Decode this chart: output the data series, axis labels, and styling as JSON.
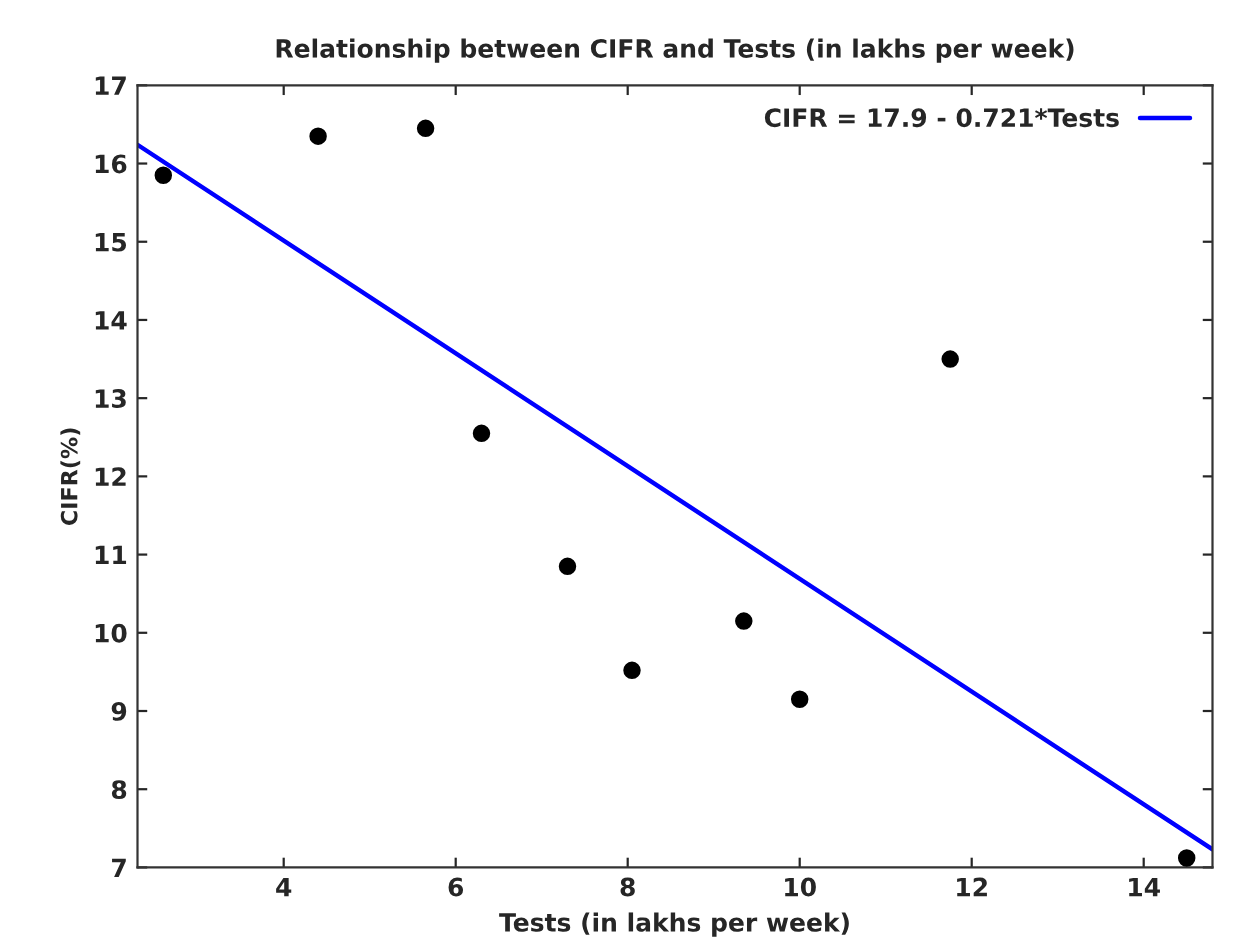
{
  "chart_data": {
    "type": "scatter",
    "title": "Relationship between CIFR and Tests (in lakhs per week)",
    "xlabel": "Tests (in lakhs per week)",
    "ylabel": "CIFR(%)",
    "series": [
      {
        "color": "#000000",
        "marker": "circle",
        "x": [
          2.6,
          4.4,
          5.65,
          6.3,
          7.3,
          8.05,
          9.35,
          10.0,
          11.75,
          14.5
        ],
        "values": [
          15.85,
          16.35,
          16.45,
          12.55,
          10.85,
          9.52,
          10.15,
          9.15,
          13.5,
          7.12
        ]
      },
      {
        "type": "line",
        "name": "CIFR = 17.9 - 0.721*Tests",
        "color": "#0000ff",
        "x": [
          2.3,
          14.8
        ],
        "values": [
          16.24,
          7.23
        ]
      }
    ],
    "xlim": [
      2.3,
      14.8
    ],
    "xticks": [
      4,
      6,
      8,
      10,
      12,
      14
    ],
    "ylim": [
      7,
      17
    ],
    "yticks": [
      7,
      8,
      9,
      10,
      11,
      12,
      13,
      14,
      15,
      16,
      17
    ],
    "grid": false,
    "legend": "top right"
  }
}
